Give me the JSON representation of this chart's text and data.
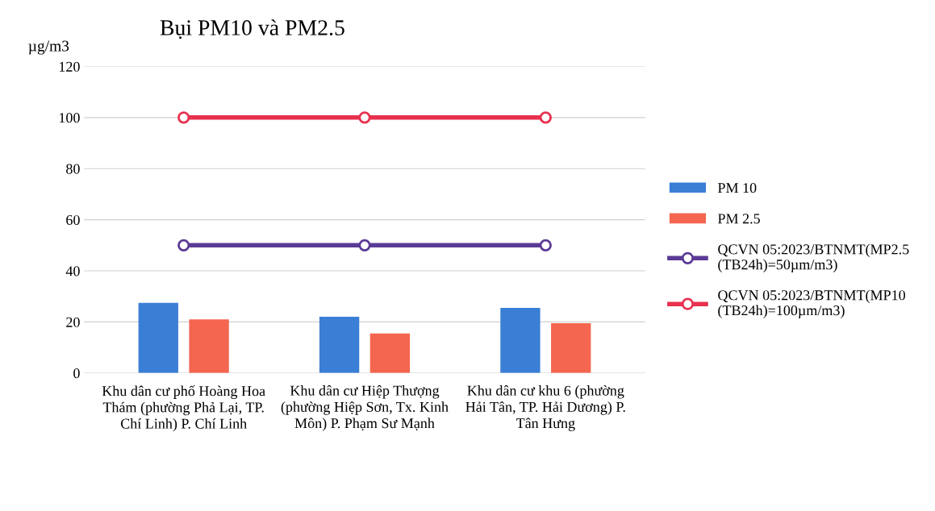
{
  "chart_data": {
    "type": "bar",
    "title": "Bụi PM10 và PM2.5",
    "ylabel": "µg/m3",
    "categories": [
      "Khu dân cư phố Hoàng Hoa Thám (phường Phả Lại, TP. Chí Linh) P. Chí Linh",
      "Khu dân cư Hiệp Thượng (phường Hiệp Sơn, Tx. Kinh Môn) P. Phạm Sư Mạnh",
      "Khu dân cư khu 6 (phường Hải Tân, TP. Hải Dương) P. Tân Hưng"
    ],
    "series": [
      {
        "name": "PM 10",
        "color": "#3a7fd5",
        "values": [
          27.5,
          22,
          25.5
        ]
      },
      {
        "name": "PM 2.5",
        "color": "#f4664f",
        "values": [
          21,
          15.5,
          19.5
        ]
      },
      {
        "name": "QCVN 05:2023/BTNMT(MP2.5 (TB24h)=50µm/m3)",
        "type": "line",
        "color": "#5b3a95",
        "values": [
          50,
          50,
          50
        ],
        "marker": "circle"
      },
      {
        "name": "QCVN 05:2023/BTNMT(MP10 (TB24h)=100µm/m3)",
        "type": "line",
        "color": "#e8314f",
        "values": [
          100,
          100,
          100
        ],
        "marker": "circle"
      }
    ],
    "ylim": [
      0,
      120
    ],
    "yticks": [
      0,
      20,
      40,
      60,
      80,
      100,
      120
    ],
    "grid": "y",
    "legend": "right"
  }
}
